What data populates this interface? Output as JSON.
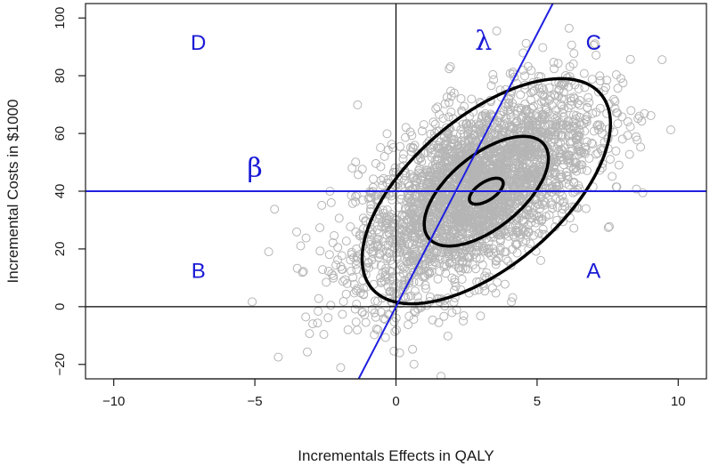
{
  "chart_data": {
    "type": "scatter",
    "xlabel": "Incrementals Effects in QALY",
    "ylabel": "Incremental Costs in $1000",
    "xlim": [
      -11,
      11
    ],
    "ylim": [
      -25,
      105
    ],
    "xticks": [
      -10,
      -5,
      0,
      5,
      10
    ],
    "yticks": [
      -20,
      0,
      20,
      40,
      60,
      80,
      100
    ],
    "grid": false,
    "point_color": "#b5b5b5",
    "line_color": "#1f1fe0",
    "ellipse_color": "#000000",
    "cloud": {
      "description_center": [
        2.7,
        40
      ],
      "point_count": 3000,
      "x_mean": 2.8,
      "x_sd": 2.1,
      "y_mean": 40,
      "y_sd": 18,
      "correlation": 0.6
    },
    "reference_lines": [
      {
        "type": "vertical",
        "x": 0
      },
      {
        "type": "horizontal",
        "y": 0
      }
    ],
    "blue_lines": [
      {
        "name": "β",
        "type": "horizontal",
        "y": 40
      },
      {
        "name": "λ",
        "type": "line",
        "slope": 18.9,
        "intercept": 0
      }
    ],
    "ellipses": [
      {
        "cx": 3.2,
        "cy": 40,
        "x_range": [
          2.5,
          3.7
        ],
        "y_range": [
          35,
          44
        ]
      },
      {
        "cx": 3.2,
        "cy": 40,
        "x_range": [
          0.8,
          5.2
        ],
        "y_range": [
          21,
          59
        ]
      },
      {
        "cx": 3.2,
        "cy": 40,
        "x_range": [
          -1.4,
          7.4
        ],
        "y_range": [
          1,
          79
        ]
      }
    ],
    "quadrant_labels": [
      {
        "text": "D",
        "x": -7,
        "y": 89
      },
      {
        "text": "C",
        "x": 7,
        "y": 89
      },
      {
        "text": "B",
        "x": -7,
        "y": 10
      },
      {
        "text": "A",
        "x": 7,
        "y": 10
      }
    ],
    "line_labels": [
      {
        "text": "β",
        "x": -5,
        "y": 45
      },
      {
        "text": "λ",
        "x": 3.1,
        "y": 89
      }
    ]
  }
}
